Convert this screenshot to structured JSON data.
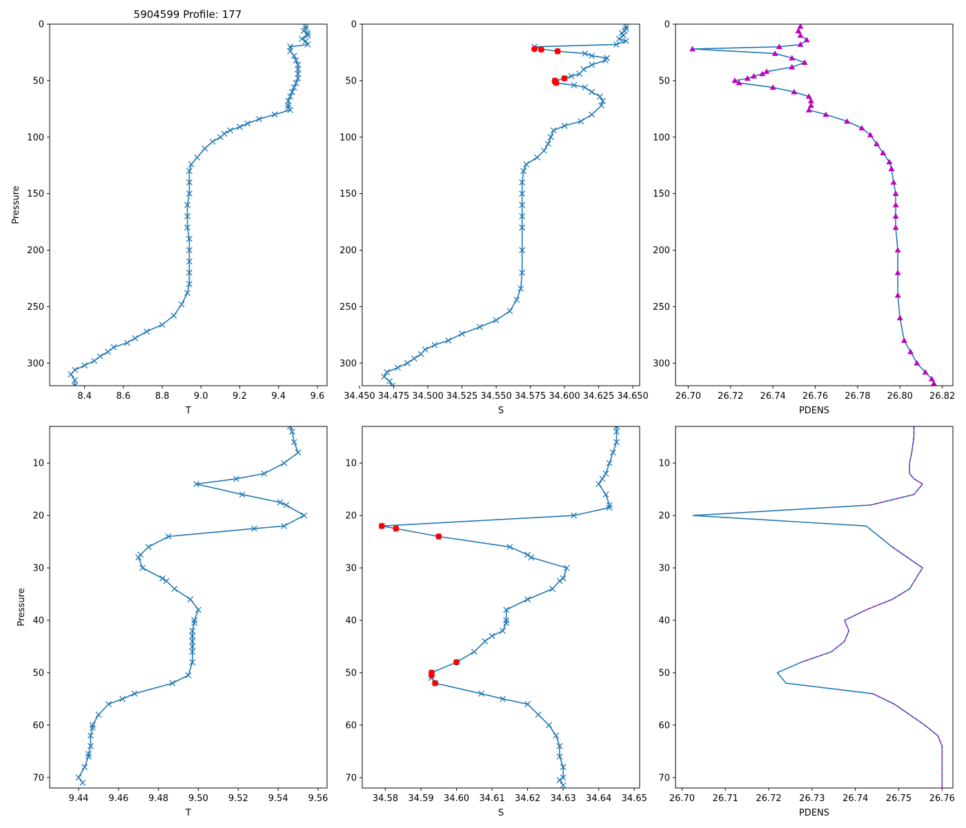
{
  "figure_title": "5904599 Profile: 177",
  "colors": {
    "line": "#1f77b4",
    "flag": "#ff0000",
    "density": "#bf00bf"
  },
  "chart_data": [
    {
      "id": "top-temperature",
      "type": "line",
      "title": "5904599 Profile: 177",
      "xlabel": "T",
      "ylabel": "Pressure",
      "xlim": [
        8.22,
        9.65
      ],
      "ylim": [
        320,
        0
      ],
      "xticks": [
        "8.4",
        "8.6",
        "8.8",
        "9.0",
        "9.2",
        "9.4",
        "9.6"
      ],
      "xtick_values": [
        8.4,
        8.6,
        8.8,
        9.0,
        9.2,
        9.4,
        9.6
      ],
      "yticks": [
        "0",
        "50",
        "100",
        "150",
        "200",
        "250",
        "300"
      ],
      "ytick_values": [
        0,
        50,
        100,
        150,
        200,
        250,
        300
      ],
      "marker": "x",
      "series": [
        {
          "name": "T",
          "x": [
            9.54,
            9.54,
            9.53,
            9.55,
            9.55,
            9.52,
            9.54,
            9.55,
            9.46,
            9.46,
            9.48,
            9.49,
            9.5,
            9.5,
            9.5,
            9.5,
            9.49,
            9.48,
            9.47,
            9.46,
            9.45,
            9.45,
            9.45,
            9.46,
            9.38,
            9.3,
            9.24,
            9.2,
            9.15,
            9.12,
            9.1,
            9.06,
            9.02,
            8.98,
            8.95,
            8.94,
            8.94,
            8.94,
            8.93,
            8.93,
            8.93,
            8.94,
            8.94,
            8.94,
            8.94,
            8.94,
            8.93,
            8.9,
            8.86,
            8.8,
            8.72,
            8.66,
            8.62,
            8.55,
            8.52,
            8.48,
            8.45,
            8.4,
            8.35,
            8.33,
            8.35,
            8.35
          ],
          "y": [
            2,
            4,
            6,
            8,
            10,
            13,
            15,
            18,
            20,
            24,
            28,
            32,
            36,
            40,
            44,
            48,
            52,
            56,
            60,
            64,
            68,
            72,
            74,
            76,
            80,
            84,
            88,
            91,
            94,
            97,
            100,
            104,
            110,
            118,
            124,
            130,
            140,
            150,
            160,
            170,
            180,
            190,
            200,
            210,
            220,
            230,
            238,
            248,
            258,
            266,
            272,
            278,
            282,
            286,
            290,
            294,
            298,
            302,
            306,
            310,
            315,
            320
          ]
        }
      ]
    },
    {
      "id": "top-salinity",
      "type": "line",
      "xlabel": "S",
      "ylabel": "",
      "xlim": [
        34.452,
        34.655
      ],
      "ylim": [
        320,
        0
      ],
      "xticks": [
        "34.450",
        "34.475",
        "34.500",
        "34.525",
        "34.550",
        "34.575",
        "34.600",
        "34.625",
        "34.650"
      ],
      "xtick_values": [
        34.45,
        34.475,
        34.5,
        34.525,
        34.55,
        34.575,
        34.6,
        34.625,
        34.65
      ],
      "yticks": [
        "0",
        "50",
        "100",
        "150",
        "200",
        "250",
        "300"
      ],
      "ytick_values": [
        0,
        50,
        100,
        150,
        200,
        250,
        300
      ],
      "marker": "x",
      "series": [
        {
          "name": "S",
          "x": [
            34.645,
            34.645,
            34.644,
            34.642,
            34.643,
            34.64,
            34.645,
            34.638,
            34.578,
            34.583,
            34.595,
            34.615,
            34.62,
            34.631,
            34.63,
            34.62,
            34.614,
            34.611,
            34.605,
            34.6,
            34.593,
            34.594,
            34.607,
            34.615,
            34.62,
            34.626,
            34.628,
            34.627,
            34.62,
            34.612,
            34.6,
            34.592,
            34.59,
            34.588,
            34.585,
            34.58,
            34.572,
            34.57,
            34.569,
            34.569,
            34.569,
            34.569,
            34.569,
            34.569,
            34.569,
            34.568,
            34.565,
            34.56,
            34.55,
            34.538,
            34.525,
            34.515,
            34.505,
            34.498,
            34.495,
            34.49,
            34.485,
            34.478,
            34.47,
            34.468,
            34.472,
            34.474
          ],
          "y": [
            2,
            4,
            6,
            8,
            10,
            13,
            15,
            18,
            20,
            22,
            24,
            26,
            28,
            30,
            32,
            36,
            40,
            44,
            46,
            48,
            50,
            52,
            54,
            56,
            60,
            64,
            68,
            72,
            80,
            86,
            90,
            94,
            100,
            106,
            112,
            118,
            124,
            130,
            140,
            150,
            160,
            170,
            180,
            200,
            220,
            234,
            244,
            254,
            262,
            268,
            274,
            280,
            284,
            288,
            292,
            296,
            300,
            304,
            308,
            312,
            316,
            320
          ]
        }
      ],
      "flagged": {
        "x": [
          34.578,
          34.583,
          34.595,
          34.6,
          34.593,
          34.593,
          34.594
        ],
        "y": [
          22,
          22.5,
          24,
          48,
          50,
          51,
          52
        ]
      }
    },
    {
      "id": "top-density",
      "type": "line",
      "xlabel": "PDENS",
      "ylabel": "",
      "xlim": [
        26.694,
        26.825
      ],
      "ylim": [
        320,
        0
      ],
      "xticks": [
        "26.70",
        "26.72",
        "26.74",
        "26.76",
        "26.78",
        "26.80",
        "26.82"
      ],
      "xtick_values": [
        26.7,
        26.72,
        26.74,
        26.76,
        26.78,
        26.8,
        26.82
      ],
      "yticks": [
        "0",
        "50",
        "100",
        "150",
        "200",
        "250",
        "300"
      ],
      "ytick_values": [
        0,
        50,
        100,
        150,
        200,
        250,
        300
      ],
      "marker": "triangle",
      "series": [
        {
          "name": "PDENS",
          "x": [
            26.753,
            26.752,
            26.753,
            26.756,
            26.753,
            26.743,
            26.702,
            26.741,
            26.749,
            26.755,
            26.749,
            26.737,
            26.735,
            26.731,
            26.728,
            26.722,
            26.724,
            26.74,
            26.75,
            26.757,
            26.758,
            26.758,
            26.757,
            26.765,
            26.775,
            26.782,
            26.786,
            26.789,
            26.792,
            26.795,
            26.796,
            26.797,
            26.798,
            26.798,
            26.798,
            26.798,
            26.799,
            26.799,
            26.799,
            26.8,
            26.802,
            26.805,
            26.808,
            26.812,
            26.815,
            26.816
          ],
          "y": [
            2,
            6,
            10,
            14,
            18,
            20,
            22,
            26,
            30,
            34,
            38,
            42,
            44,
            46,
            48,
            50,
            52,
            56,
            60,
            64,
            68,
            72,
            76,
            80,
            86,
            92,
            98,
            106,
            114,
            122,
            128,
            140,
            150,
            160,
            170,
            180,
            200,
            220,
            240,
            260,
            280,
            290,
            300,
            308,
            314,
            318
          ]
        }
      ]
    },
    {
      "id": "bottom-temperature",
      "type": "line",
      "xlabel": "T",
      "ylabel": "Pressure",
      "xlim": [
        9.4255,
        9.5645
      ],
      "ylim": [
        72,
        3
      ],
      "xticks": [
        "9.44",
        "9.46",
        "9.48",
        "9.50",
        "9.52",
        "9.54",
        "9.56"
      ],
      "xtick_values": [
        9.44,
        9.46,
        9.48,
        9.5,
        9.52,
        9.54,
        9.56
      ],
      "yticks": [
        "10",
        "20",
        "30",
        "40",
        "50",
        "60",
        "70"
      ],
      "ytick_values": [
        10,
        20,
        30,
        40,
        50,
        60,
        70
      ],
      "marker": "x",
      "series": [
        {
          "name": "T",
          "x": [
            9.546,
            9.547,
            9.548,
            9.55,
            9.543,
            9.533,
            9.519,
            9.499,
            9.522,
            9.541,
            9.544,
            9.553,
            9.543,
            9.528,
            9.485,
            9.475,
            9.471,
            9.47,
            9.472,
            9.482,
            9.484,
            9.488,
            9.496,
            9.5,
            9.498,
            9.498,
            9.497,
            9.497,
            9.497,
            9.497,
            9.497,
            9.497,
            9.495,
            9.487,
            9.468,
            9.462,
            9.455,
            9.45,
            9.447,
            9.447,
            9.446,
            9.446,
            9.445,
            9.445,
            9.443,
            9.44,
            9.442
          ],
          "y": [
            3,
            4,
            6,
            8,
            10,
            12,
            13,
            14,
            16,
            17.5,
            18,
            20,
            22,
            22.5,
            24,
            26,
            27.5,
            28,
            30,
            32,
            32.5,
            34,
            36,
            38,
            40,
            40.5,
            42,
            43,
            44,
            45,
            46,
            48,
            50.5,
            52,
            54,
            55,
            56,
            58,
            60,
            60.5,
            62,
            64,
            65.5,
            66,
            68,
            70,
            71
          ]
        }
      ]
    },
    {
      "id": "bottom-salinity",
      "type": "line",
      "xlabel": "S",
      "ylabel": "",
      "xlim": [
        34.5735,
        34.6515
      ],
      "ylim": [
        72,
        3
      ],
      "xticks": [
        "34.58",
        "34.59",
        "34.60",
        "34.61",
        "34.62",
        "34.63",
        "34.64",
        "34.65"
      ],
      "xtick_values": [
        34.58,
        34.59,
        34.6,
        34.61,
        34.62,
        34.63,
        34.64,
        34.65
      ],
      "yticks": [
        "10",
        "20",
        "30",
        "40",
        "50",
        "60",
        "70"
      ],
      "ytick_values": [
        10,
        20,
        30,
        40,
        50,
        60,
        70
      ],
      "marker": "x",
      "series": [
        {
          "name": "S",
          "x": [
            34.645,
            34.645,
            34.645,
            34.644,
            34.643,
            34.642,
            34.641,
            34.64,
            34.642,
            34.643,
            34.643,
            34.633,
            34.579,
            34.583,
            34.595,
            34.615,
            34.62,
            34.621,
            34.631,
            34.63,
            34.629,
            34.627,
            34.62,
            34.614,
            34.614,
            34.614,
            34.613,
            34.61,
            34.608,
            34.605,
            34.6,
            34.593,
            34.593,
            34.593,
            34.594,
            34.607,
            34.613,
            34.62,
            34.623,
            34.626,
            34.628,
            34.629,
            34.629,
            34.63,
            34.63,
            34.629,
            34.63
          ],
          "y": [
            3,
            4,
            6,
            8,
            10,
            12,
            13,
            14,
            16,
            18,
            18.5,
            20,
            22,
            22.5,
            24,
            26,
            27.5,
            28,
            30,
            32,
            32.5,
            34,
            36,
            38,
            40,
            40.5,
            42,
            43,
            44,
            46,
            48,
            50,
            50.5,
            51,
            52,
            54,
            55,
            56,
            58,
            60,
            62,
            64,
            66,
            68,
            70,
            70.5,
            71.5
          ]
        }
      ],
      "flagged": {
        "x": [
          34.579,
          34.583,
          34.595,
          34.6,
          34.593,
          34.593,
          34.594
        ],
        "y": [
          22,
          22.5,
          24,
          48,
          50,
          50.5,
          52
        ]
      }
    },
    {
      "id": "bottom-density",
      "type": "line",
      "xlabel": "PDENS",
      "ylabel": "",
      "xlim": [
        26.6985,
        26.7625
      ],
      "ylim": [
        72,
        3
      ],
      "xticks": [
        "26.70",
        "26.71",
        "26.72",
        "26.73",
        "26.74",
        "26.75",
        "26.76"
      ],
      "xtick_values": [
        26.7,
        26.71,
        26.72,
        26.73,
        26.74,
        26.75,
        26.76
      ],
      "yticks": [
        "10",
        "20",
        "30",
        "40",
        "50",
        "60",
        "70"
      ],
      "ytick_values": [
        10,
        20,
        30,
        40,
        50,
        60,
        70
      ],
      "marker": "none",
      "series": [
        {
          "name": "PDENS",
          "x": [
            26.7535,
            26.7535,
            26.753,
            26.7525,
            26.7525,
            26.7535,
            26.7555,
            26.7535,
            26.7435,
            26.7025,
            26.7425,
            26.7485,
            26.7555,
            26.7525,
            26.7485,
            26.7425,
            26.7375,
            26.7385,
            26.7375,
            26.7345,
            26.7275,
            26.722,
            26.724,
            26.744,
            26.749,
            26.7525,
            26.756,
            26.759,
            26.76,
            26.76,
            26.76,
            26.76
          ],
          "y": [
            3,
            5,
            8,
            10,
            12,
            13,
            14,
            16,
            18,
            20,
            22,
            26,
            30,
            34,
            36,
            38,
            40,
            42,
            44,
            46,
            48,
            50,
            52,
            54,
            56,
            58,
            60,
            62,
            64,
            66,
            68,
            72
          ]
        }
      ]
    }
  ]
}
